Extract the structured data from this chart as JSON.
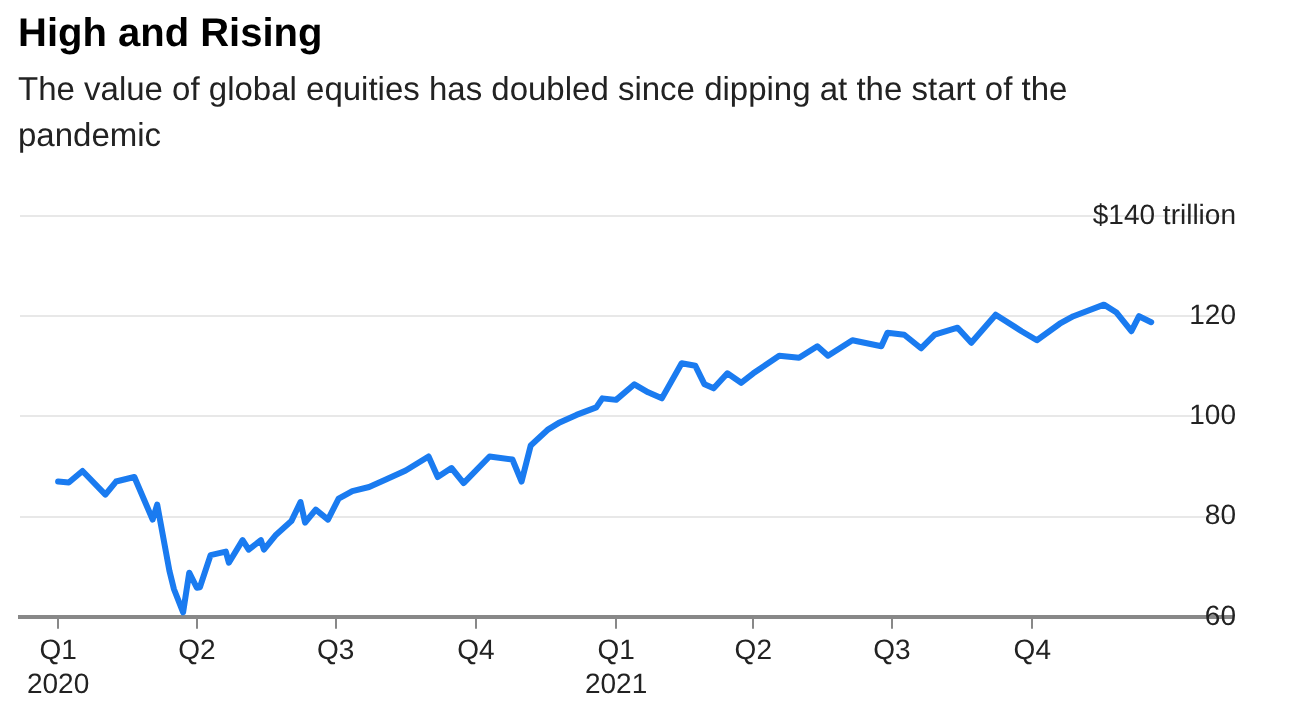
{
  "chart_data": {
    "type": "line",
    "title": "High and Rising",
    "subtitle": "The value of global equities has doubled since dipping at the start of the pandemic",
    "x": [
      "2020-01-01",
      "2020-01-08",
      "2020-01-17",
      "2020-02-01",
      "2020-02-08",
      "2020-02-20",
      "2020-03-03",
      "2020-03-06",
      "2020-03-14",
      "2020-03-17",
      "2020-03-23",
      "2020-03-27",
      "2020-04-01",
      "2020-04-03",
      "2020-04-10",
      "2020-04-20",
      "2020-04-22",
      "2020-05-01",
      "2020-05-05",
      "2020-05-13",
      "2020-05-15",
      "2020-05-23",
      "2020-06-02",
      "2020-06-08",
      "2020-06-11",
      "2020-06-18",
      "2020-06-26",
      "2020-07-03",
      "2020-07-12",
      "2020-07-23",
      "2020-08-03",
      "2020-08-16",
      "2020-08-31",
      "2020-09-06",
      "2020-09-15",
      "2020-09-23",
      "2020-10-10",
      "2020-10-25",
      "2020-10-31",
      "2020-11-06",
      "2020-11-17",
      "2020-11-25",
      "2020-12-06",
      "2020-12-19",
      "2020-12-23",
      "2021-01-01",
      "2021-01-13",
      "2021-01-22",
      "2021-01-31",
      "2021-02-13",
      "2021-02-22",
      "2021-02-28",
      "2021-03-06",
      "2021-03-15",
      "2021-03-24",
      "2021-04-01",
      "2021-04-18",
      "2021-05-01",
      "2021-05-13",
      "2021-05-20",
      "2021-06-05",
      "2021-06-24",
      "2021-06-28",
      "2021-07-09",
      "2021-07-20",
      "2021-07-29",
      "2021-08-13",
      "2021-08-22",
      "2021-09-07",
      "2021-09-24",
      "2021-10-04",
      "2021-10-19",
      "2021-10-28",
      "2021-11-17",
      "2021-11-25",
      "2021-12-05",
      "2021-12-10",
      "2021-12-18"
    ],
    "series": [
      {
        "color": "#1a7bf0",
        "values": [
          87,
          86.8,
          89.1,
          84.4,
          87,
          87.9,
          79.4,
          82.4,
          69.2,
          65.5,
          60.9,
          68.8,
          65.8,
          65.9,
          72.3,
          73,
          70.8,
          75.3,
          73.4,
          75.3,
          73.4,
          76.4,
          79.1,
          82.9,
          78.8,
          81.4,
          79.4,
          83.6,
          85.1,
          85.9,
          87.4,
          89.2,
          92,
          87.9,
          89.7,
          86.7,
          92,
          91.4,
          87,
          94.2,
          97.3,
          98.8,
          100.3,
          101.8,
          103.6,
          103.3,
          106.4,
          104.8,
          103.6,
          110.6,
          110.1,
          106.4,
          105.6,
          108.6,
          106.7,
          108.6,
          112.1,
          111.7,
          114,
          112.1,
          115.2,
          114,
          116.7,
          116.3,
          113.6,
          116.3,
          117.7,
          114.7,
          120.3,
          117,
          115.2,
          118.5,
          120,
          122.3,
          120.8,
          117,
          120,
          118.8
        ]
      }
    ],
    "xlim": [
      "2019-12-07",
      "2022-02-09"
    ],
    "xticks": [
      {
        "value": "2020-01-01",
        "label": "Q1 2020"
      },
      {
        "value": "2020-04-01",
        "label": "Q2"
      },
      {
        "value": "2020-07-01",
        "label": "Q3"
      },
      {
        "value": "2020-10-01",
        "label": "Q4"
      },
      {
        "value": "2021-01-01",
        "label": "Q1 2021"
      },
      {
        "value": "2021-04-01",
        "label": "Q2"
      },
      {
        "value": "2021-07-01",
        "label": "Q3"
      },
      {
        "value": "2021-10-01",
        "label": "Q4"
      }
    ],
    "ylim": [
      60,
      140
    ],
    "yticks": [
      60,
      80,
      100,
      120,
      {
        "value": 140,
        "label": "$140 trillion"
      }
    ],
    "grid": "y",
    "legend": false,
    "marker": "none",
    "line_style": "solid"
  }
}
